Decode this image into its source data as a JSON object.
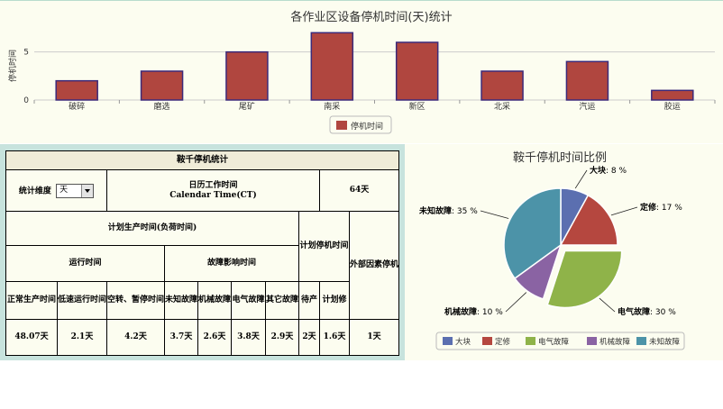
{
  "bar_chart": {
    "title": "各作业区设备停机时间(天)统计",
    "ylabel": "停机时间",
    "legend": "停机时间",
    "series_color": "#b0463f",
    "bar_edge_color": "#3c2a7a"
  },
  "stats": {
    "title": "鞍千停机统计",
    "dimension_label": "统计维度",
    "dimension_value": "天",
    "calendar_label_cn": "日历工作时间",
    "calendar_label_en": "Calendar Time(CT)",
    "calendar_value": "64天",
    "planned_production": "计划生产时间(负荷时间)",
    "planned_stop": "计划停机时间",
    "external_stop": "外部因素停机",
    "run_time": "运行时间",
    "fault_time": "故障影响时间",
    "cols": {
      "normal": "正常生产时间",
      "low_speed": "低速运行时间",
      "idle": "空转、暂停时间",
      "unknown": "未知故障",
      "mechanical": "机械故障",
      "electrical": "电气故障",
      "other": "其它故障",
      "standby": "待产",
      "maintenance": "计划修"
    },
    "values": {
      "normal": "48.07天",
      "low_speed": "2.1天",
      "idle": "4.2天",
      "unknown": "3.7天",
      "mechanical": "2.6天",
      "electrical": "3.8天",
      "other": "2.9天",
      "standby": "2天",
      "maintenance": "1.6天",
      "external": "1天"
    }
  },
  "pie_chart": {
    "title": "鞍千停机时间比例",
    "pct_suffix": "%"
  },
  "chart_data": [
    {
      "type": "bar",
      "title": "各作业区设备停机时间(天)统计",
      "ylabel": "停机时间",
      "categories": [
        "破碎",
        "磨选",
        "尾矿",
        "南采",
        "新区",
        "北采",
        "汽运",
        "胶运"
      ],
      "series": [
        {
          "name": "停机时间",
          "values": [
            2,
            3,
            5,
            7,
            6,
            3,
            4,
            1
          ]
        }
      ],
      "ylim": [
        0,
        7.5
      ],
      "yticks": [
        0,
        5
      ],
      "grid": true,
      "legend": "bottom-center"
    },
    {
      "type": "pie",
      "title": "鞍千停机时间比例",
      "labels": [
        "大块",
        "定修",
        "电气故障",
        "机械故障",
        "未知故障"
      ],
      "values": [
        8,
        17,
        30,
        10,
        35
      ],
      "colors": [
        "#5b6fb0",
        "#b5473f",
        "#8fb349",
        "#8a63a3",
        "#4c93a8"
      ],
      "exploded": "电气故障",
      "legend": "bottom-center"
    }
  ]
}
